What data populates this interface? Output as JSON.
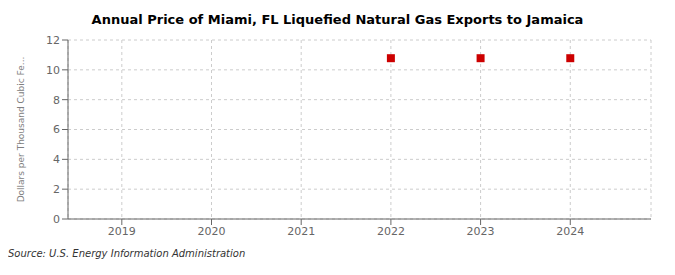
{
  "chart_data": {
    "type": "scatter",
    "title": "Annual Price of Miami, FL Liquefied Natural Gas Exports to Jamaica",
    "ylabel": "Dollars per Thousand Cubic Fe...",
    "annotations": [
      "Source: U.S. Energy Information Administration"
    ],
    "x": [
      2022,
      2023,
      2024
    ],
    "values": [
      10.78,
      10.78,
      10.78
    ],
    "color": "#CC0000",
    "marker": "square",
    "xlim": [
      2018.4,
      2024.9
    ],
    "xticks": [
      2019,
      2020,
      2021,
      2022,
      2023,
      2024
    ],
    "ylim": [
      0,
      12
    ],
    "yticks": [
      0,
      2,
      4,
      6,
      8,
      10,
      12
    ],
    "grid": true
  }
}
